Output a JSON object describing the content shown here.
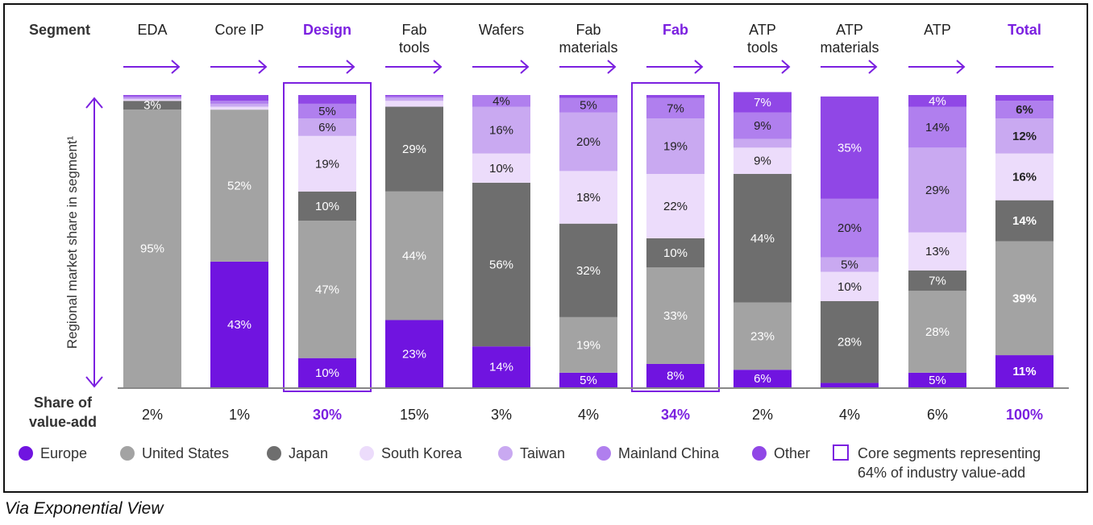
{
  "header": {
    "segment_label": "Segment"
  },
  "ylabel": "Regional market share in segment¹",
  "footer": {
    "share_label_line1": "Share of",
    "share_label_line2": "value-add"
  },
  "caption": "Via Exponential View",
  "colors": {
    "accent": "#7b20e0",
    "Europe": "#7014e0",
    "United States": "#a3a3a3",
    "Japan": "#6e6e6e",
    "South Korea": "#ecdcfb",
    "Taiwan": "#c9a9f1",
    "Mainland China": "#b07fee",
    "Other": "#9047e6"
  },
  "legend": {
    "items": [
      "Europe",
      "United States",
      "Japan",
      "South Korea",
      "Taiwan",
      "Mainland China",
      "Other"
    ],
    "core_line1": "Core segments representing",
    "core_line2": "64% of industry value-add"
  },
  "chart_data": {
    "type": "bar",
    "stacked": true,
    "ylim": [
      0,
      100
    ],
    "categories": [
      {
        "name": [
          "EDA"
        ],
        "highlight": false,
        "core": false,
        "share": "2%"
      },
      {
        "name": [
          "Core IP"
        ],
        "highlight": false,
        "core": false,
        "share": "1%"
      },
      {
        "name": [
          "Design"
        ],
        "highlight": true,
        "core": true,
        "share": "30%"
      },
      {
        "name": [
          "Fab",
          "tools"
        ],
        "highlight": false,
        "core": false,
        "share": "15%"
      },
      {
        "name": [
          "Wafers"
        ],
        "highlight": false,
        "core": false,
        "share": "3%"
      },
      {
        "name": [
          "Fab",
          "materials"
        ],
        "highlight": false,
        "core": false,
        "share": "4%"
      },
      {
        "name": [
          "Fab"
        ],
        "highlight": true,
        "core": true,
        "share": "34%"
      },
      {
        "name": [
          "ATP",
          "tools"
        ],
        "highlight": false,
        "core": false,
        "share": "2%"
      },
      {
        "name": [
          "ATP",
          "materials"
        ],
        "highlight": false,
        "core": false,
        "share": "4%"
      },
      {
        "name": [
          "ATP"
        ],
        "highlight": false,
        "core": false,
        "share": "6%"
      },
      {
        "name": [
          "Total"
        ],
        "highlight": true,
        "core": false,
        "share": "100%"
      }
    ],
    "series": [
      {
        "name": "Europe",
        "values": [
          0,
          43,
          10,
          23,
          14,
          5,
          8,
          6,
          1.5,
          5,
          11
        ],
        "labels": [
          "",
          "43%",
          "10%",
          "23%",
          "14%",
          "5%",
          "8%",
          "6%",
          "",
          "5%",
          "11%"
        ]
      },
      {
        "name": "United States",
        "values": [
          95,
          52,
          47,
          44,
          0,
          19,
          33,
          23,
          0,
          28,
          39
        ],
        "labels": [
          "95%",
          "52%",
          "47%",
          "44%",
          "",
          "19%",
          "33%",
          "23%",
          "",
          "28%",
          "39%"
        ]
      },
      {
        "name": "Japan",
        "values": [
          3,
          0,
          10,
          29,
          56,
          32,
          10,
          44,
          28,
          7,
          14
        ],
        "labels": [
          "3%",
          "",
          "10%",
          "29%",
          "56%",
          "32%",
          "10%",
          "44%",
          "28%",
          "7%",
          "14%"
        ]
      },
      {
        "name": "South Korea",
        "values": [
          0.5,
          1,
          19,
          2,
          10,
          18,
          22,
          9,
          10,
          13,
          16
        ],
        "labels": [
          "",
          "",
          "19%",
          "",
          "10%",
          "18%",
          "22%",
          "9%",
          "10%",
          "13%",
          "16%"
        ]
      },
      {
        "name": "Taiwan",
        "values": [
          0.5,
          1,
          6,
          1,
          16,
          20,
          19,
          3,
          5,
          29,
          12
        ],
        "labels": [
          "",
          "",
          "6%",
          "",
          "16%",
          "20%",
          "19%",
          "",
          "5%",
          "29%",
          "12%"
        ]
      },
      {
        "name": "Mainland China",
        "values": [
          0.5,
          1,
          5,
          0.5,
          4,
          5,
          7,
          9,
          20,
          14,
          6
        ],
        "labels": [
          "",
          "",
          "5%",
          "",
          "4%",
          "5%",
          "7%",
          "9%",
          "20%",
          "14%",
          "6%"
        ]
      },
      {
        "name": "Other",
        "values": [
          0.5,
          2,
          3,
          0.5,
          0,
          1,
          1,
          7,
          35,
          4,
          2
        ],
        "labels": [
          "",
          "",
          "",
          "",
          "",
          "",
          "",
          "7%",
          "35%",
          "4%",
          ""
        ]
      }
    ]
  }
}
